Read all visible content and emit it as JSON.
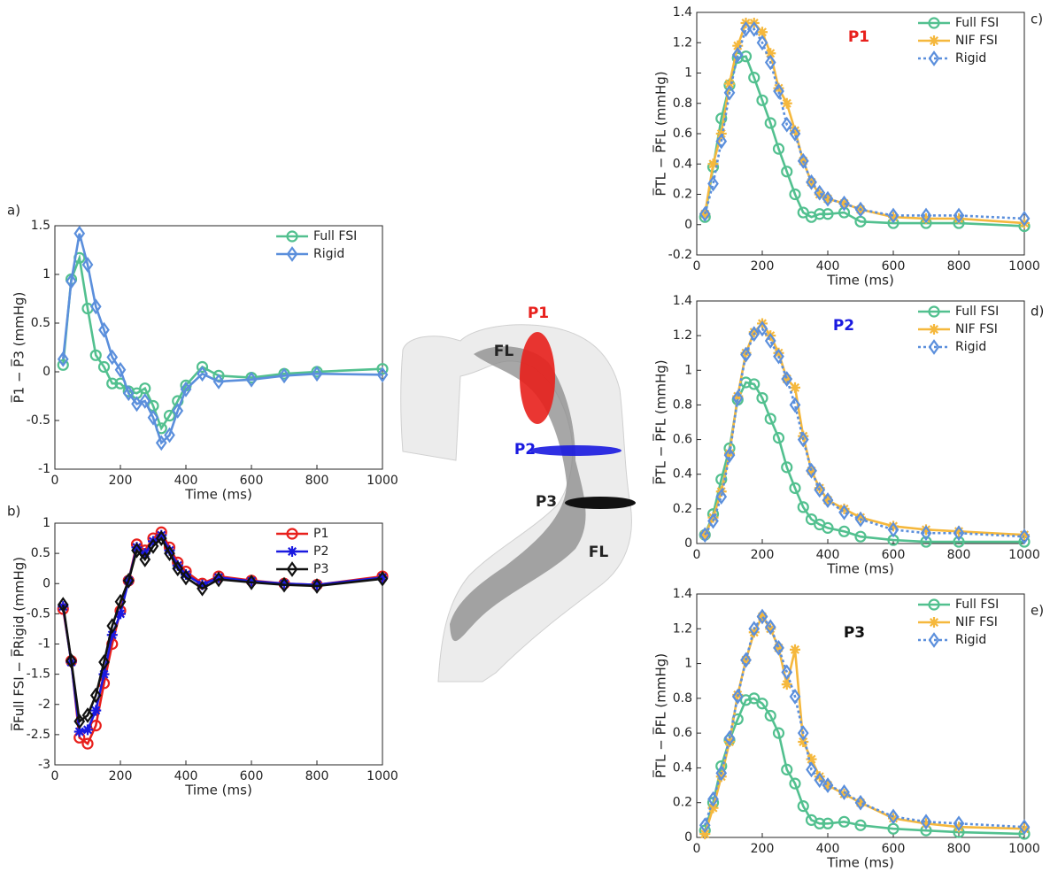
{
  "chart_data": [
    {
      "type": "line",
      "panel_label": "a)",
      "xlabel": "Time (ms)",
      "ylabel": "P̅1 − P̅3 (mmHg)",
      "xlim": [
        0,
        1000
      ],
      "xticks": [
        0,
        200,
        400,
        600,
        800,
        1000
      ],
      "ylim": [
        -1,
        1.5
      ],
      "yticks": [
        -1,
        -0.5,
        0,
        0.5,
        1,
        1.5
      ],
      "legend": "upper right",
      "x": [
        25,
        50,
        75,
        100,
        125,
        150,
        175,
        200,
        225,
        250,
        275,
        300,
        325,
        350,
        375,
        400,
        450,
        500,
        600,
        700,
        800,
        1000
      ],
      "series": [
        {
          "name": "Full FSI",
          "color": "#52c08f",
          "marker": "circle",
          "dashed": false,
          "values": [
            0.07,
            0.95,
            1.17,
            0.65,
            0.17,
            0.05,
            -0.12,
            -0.12,
            -0.2,
            -0.22,
            -0.17,
            -0.35,
            -0.58,
            -0.45,
            -0.3,
            -0.14,
            0.05,
            -0.04,
            -0.06,
            -0.02,
            0.0,
            0.03
          ]
        },
        {
          "name": "Rigid",
          "color": "#5b8fdc",
          "marker": "diamond",
          "dashed": false,
          "values": [
            0.13,
            0.93,
            1.42,
            1.1,
            0.67,
            0.43,
            0.15,
            0.02,
            -0.22,
            -0.33,
            -0.3,
            -0.47,
            -0.73,
            -0.65,
            -0.4,
            -0.18,
            -0.02,
            -0.1,
            -0.08,
            -0.04,
            -0.02,
            -0.03
          ]
        }
      ]
    },
    {
      "type": "line",
      "panel_label": "b)",
      "xlabel": "Time (ms)",
      "ylabel": "P̅Full FSI − P̅Rigid (mmHg)",
      "xlim": [
        0,
        1000
      ],
      "xticks": [
        0,
        200,
        400,
        600,
        800,
        1000
      ],
      "ylim": [
        -3,
        1
      ],
      "yticks": [
        -3,
        -2.5,
        -2,
        -1.5,
        -1,
        -0.5,
        0,
        0.5,
        1
      ],
      "legend": "upper right",
      "x": [
        25,
        50,
        75,
        100,
        125,
        150,
        175,
        200,
        225,
        250,
        275,
        300,
        325,
        350,
        375,
        400,
        450,
        500,
        600,
        700,
        800,
        1000
      ],
      "series": [
        {
          "name": "P1",
          "color": "#e8201c",
          "marker": "circle",
          "dashed": false,
          "values": [
            -0.42,
            -1.28,
            -2.55,
            -2.65,
            -2.35,
            -1.65,
            -1.0,
            -0.45,
            0.05,
            0.65,
            0.55,
            0.75,
            0.85,
            0.6,
            0.35,
            0.2,
            0.0,
            0.12,
            0.05,
            0.0,
            -0.02,
            0.12
          ]
        },
        {
          "name": "P2",
          "color": "#1a1ae0",
          "marker": "star",
          "dashed": false,
          "values": [
            -0.38,
            -1.3,
            -2.45,
            -2.42,
            -2.1,
            -1.5,
            -0.85,
            -0.5,
            0.05,
            0.6,
            0.5,
            0.7,
            0.8,
            0.55,
            0.3,
            0.15,
            -0.02,
            0.1,
            0.04,
            0.0,
            -0.02,
            0.1
          ]
        },
        {
          "name": "P3",
          "color": "#111111",
          "marker": "diamond",
          "dashed": false,
          "values": [
            -0.35,
            -1.28,
            -2.28,
            -2.18,
            -1.85,
            -1.3,
            -0.7,
            -0.3,
            0.05,
            0.55,
            0.4,
            0.62,
            0.75,
            0.5,
            0.25,
            0.1,
            -0.08,
            0.07,
            0.02,
            -0.02,
            -0.04,
            0.08
          ]
        }
      ]
    },
    {
      "type": "line",
      "panel_label": "c)",
      "annotation": "P1",
      "annotation_color": "#e8201c",
      "xlabel": "Time (ms)",
      "ylabel": "P̅TL − P̅FL (mmHg)",
      "xlim": [
        0,
        1000
      ],
      "xticks": [
        0,
        200,
        400,
        600,
        800,
        1000
      ],
      "ylim": [
        -0.2,
        1.4
      ],
      "yticks": [
        -0.2,
        0,
        0.2,
        0.4,
        0.6,
        0.8,
        1,
        1.2,
        1.4
      ],
      "legend": "upper right",
      "x": [
        25,
        50,
        75,
        100,
        125,
        150,
        175,
        200,
        225,
        250,
        275,
        300,
        325,
        350,
        375,
        400,
        450,
        500,
        600,
        700,
        800,
        1000
      ],
      "series": [
        {
          "name": "Full FSI",
          "color": "#52c08f",
          "marker": "circle",
          "dashed": false,
          "values": [
            0.05,
            0.38,
            0.7,
            0.92,
            1.1,
            1.11,
            0.97,
            0.82,
            0.67,
            0.5,
            0.35,
            0.2,
            0.08,
            0.05,
            0.07,
            0.07,
            0.08,
            0.02,
            0.01,
            0.01,
            0.01,
            -0.01
          ]
        },
        {
          "name": "NIF FSI",
          "color": "#f5b83d",
          "marker": "star",
          "dashed": false,
          "values": [
            0.07,
            0.4,
            0.6,
            0.93,
            1.18,
            1.33,
            1.33,
            1.27,
            1.13,
            0.9,
            0.8,
            0.62,
            0.42,
            0.28,
            0.2,
            0.17,
            0.14,
            0.1,
            0.05,
            0.04,
            0.04,
            0.01
          ]
        },
        {
          "name": "Rigid",
          "color": "#5b8fdc",
          "marker": "diamond",
          "dashed": true,
          "values": [
            0.07,
            0.27,
            0.55,
            0.87,
            1.12,
            1.29,
            1.29,
            1.2,
            1.07,
            0.88,
            0.66,
            0.6,
            0.42,
            0.28,
            0.21,
            0.17,
            0.14,
            0.1,
            0.06,
            0.06,
            0.06,
            0.04
          ]
        }
      ]
    },
    {
      "type": "line",
      "panel_label": "d)",
      "annotation": "P2",
      "annotation_color": "#1a1ae0",
      "xlabel": "Time (ms)",
      "ylabel": "P̅TL − P̅FL (mmHg)",
      "xlim": [
        0,
        1000
      ],
      "xticks": [
        0,
        200,
        400,
        600,
        800,
        1000
      ],
      "ylim": [
        0,
        1.4
      ],
      "yticks": [
        0,
        0.2,
        0.4,
        0.6,
        0.8,
        1,
        1.2,
        1.4
      ],
      "legend": "upper right",
      "x": [
        25,
        50,
        75,
        100,
        125,
        150,
        175,
        200,
        225,
        250,
        275,
        300,
        325,
        350,
        375,
        400,
        450,
        500,
        600,
        700,
        800,
        1000
      ],
      "series": [
        {
          "name": "Full FSI",
          "color": "#52c08f",
          "marker": "circle",
          "dashed": false,
          "values": [
            0.05,
            0.17,
            0.37,
            0.55,
            0.83,
            0.93,
            0.92,
            0.84,
            0.72,
            0.61,
            0.44,
            0.32,
            0.21,
            0.14,
            0.11,
            0.09,
            0.07,
            0.04,
            0.02,
            0.01,
            0.01,
            0.01
          ]
        },
        {
          "name": "NIF FSI",
          "color": "#f5b83d",
          "marker": "star",
          "dashed": false,
          "values": [
            0.05,
            0.15,
            0.3,
            0.52,
            0.85,
            1.1,
            1.22,
            1.27,
            1.2,
            1.1,
            0.95,
            0.9,
            0.62,
            0.42,
            0.32,
            0.25,
            0.2,
            0.15,
            0.1,
            0.08,
            0.07,
            0.05
          ]
        },
        {
          "name": "Rigid",
          "color": "#5b8fdc",
          "marker": "diamond",
          "dashed": true,
          "values": [
            0.05,
            0.13,
            0.27,
            0.51,
            0.84,
            1.09,
            1.21,
            1.24,
            1.17,
            1.08,
            0.95,
            0.8,
            0.6,
            0.42,
            0.31,
            0.25,
            0.18,
            0.14,
            0.08,
            0.06,
            0.06,
            0.04
          ]
        }
      ]
    },
    {
      "type": "line",
      "panel_label": "e)",
      "annotation": "P3",
      "annotation_color": "#111111",
      "xlabel": "Time (ms)",
      "ylabel": "P̅TL − P̅FL (mmHg)",
      "xlim": [
        0,
        1000
      ],
      "xticks": [
        0,
        200,
        400,
        600,
        800,
        1000
      ],
      "ylim": [
        0,
        1.4
      ],
      "yticks": [
        0,
        0.2,
        0.4,
        0.6,
        0.8,
        1,
        1.2,
        1.4
      ],
      "legend": "upper right",
      "x": [
        25,
        50,
        75,
        100,
        125,
        150,
        175,
        200,
        225,
        250,
        275,
        300,
        325,
        350,
        375,
        400,
        450,
        500,
        600,
        700,
        800,
        1000
      ],
      "series": [
        {
          "name": "Full FSI",
          "color": "#52c08f",
          "marker": "circle",
          "dashed": false,
          "values": [
            0.04,
            0.2,
            0.41,
            0.56,
            0.68,
            0.79,
            0.8,
            0.77,
            0.7,
            0.6,
            0.39,
            0.31,
            0.18,
            0.1,
            0.08,
            0.08,
            0.09,
            0.07,
            0.05,
            0.04,
            0.03,
            0.02
          ]
        },
        {
          "name": "NIF FSI",
          "color": "#f5b83d",
          "marker": "star",
          "dashed": false,
          "values": [
            0.02,
            0.17,
            0.35,
            0.55,
            0.82,
            1.02,
            1.18,
            1.27,
            1.2,
            1.09,
            0.88,
            1.08,
            0.55,
            0.45,
            0.35,
            0.3,
            0.25,
            0.2,
            0.11,
            0.08,
            0.06,
            0.05
          ]
        },
        {
          "name": "Rigid",
          "color": "#5b8fdc",
          "marker": "diamond",
          "dashed": true,
          "values": [
            0.07,
            0.22,
            0.37,
            0.57,
            0.81,
            1.02,
            1.2,
            1.27,
            1.21,
            1.09,
            0.95,
            0.81,
            0.6,
            0.39,
            0.33,
            0.3,
            0.26,
            0.2,
            0.12,
            0.09,
            0.08,
            0.06
          ]
        }
      ]
    }
  ],
  "figure": {
    "labels": [
      "P1",
      "FL",
      "P2",
      "P3",
      "FL"
    ]
  }
}
